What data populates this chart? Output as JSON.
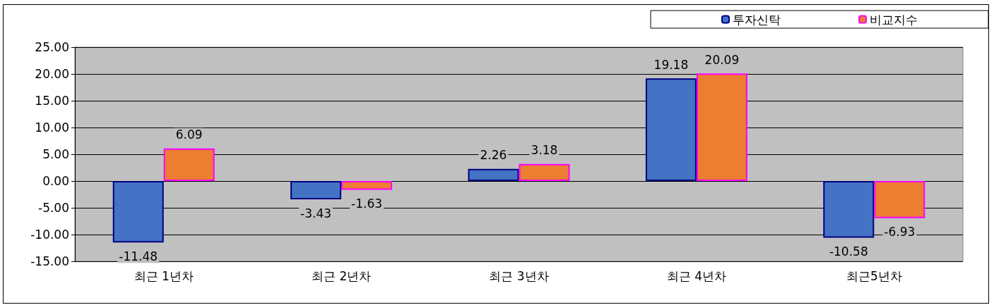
{
  "chart_data": {
    "type": "bar",
    "categories": [
      "최근 1년차",
      "최근 2년차",
      "최근 3년차",
      "최근 4년차",
      "최근5년차"
    ],
    "series": [
      {
        "name": "투자신탁",
        "color": "#4472c4",
        "values": [
          -11.48,
          -3.43,
          2.26,
          19.18,
          -10.58
        ]
      },
      {
        "name": "비교지수",
        "color": "#ed7d31",
        "values": [
          6.09,
          -1.63,
          3.18,
          20.09,
          -6.93
        ]
      }
    ],
    "ylim": [
      -15,
      25
    ],
    "yticks": [
      {
        "value": -15,
        "label": "-15.00"
      },
      {
        "value": -10,
        "label": "-10.00"
      },
      {
        "value": -5,
        "label": "-5.00"
      },
      {
        "value": 0,
        "label": "0.00"
      },
      {
        "value": 5,
        "label": "5.00"
      },
      {
        "value": 10,
        "label": "10.00"
      },
      {
        "value": 15,
        "label": "15.00"
      },
      {
        "value": 20,
        "label": "20.00"
      },
      {
        "value": 25,
        "label": "25.00"
      }
    ],
    "grid": "y",
    "legend": "top right",
    "data_labels": true
  }
}
